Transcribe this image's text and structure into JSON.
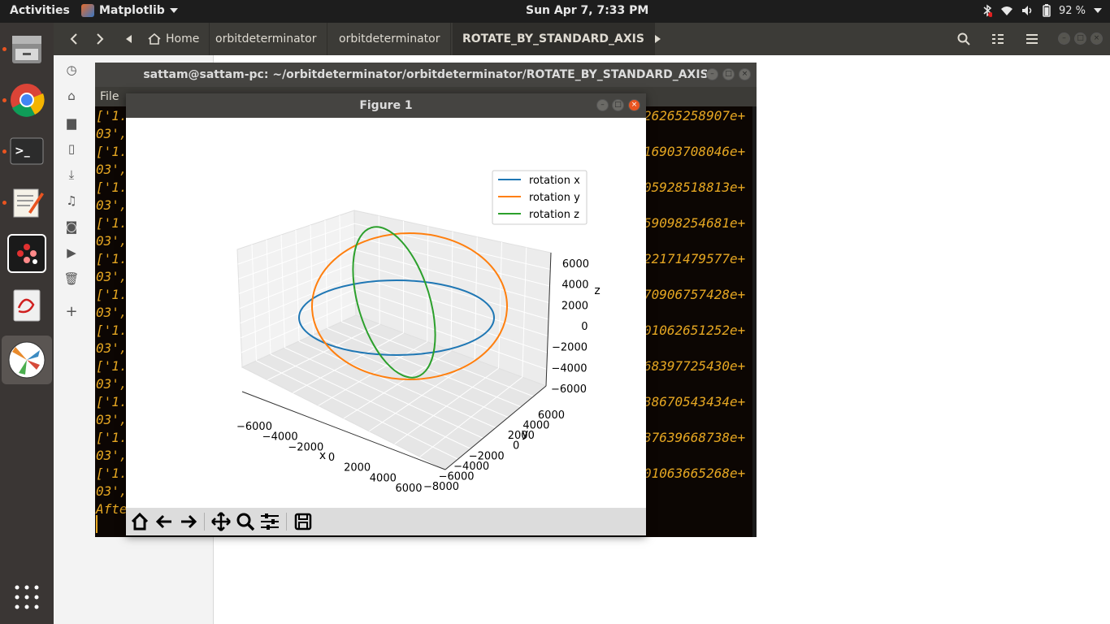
{
  "topbar": {
    "activities": "Activities",
    "app_name": "Matplotlib",
    "clock": "Sun Apr  7,  7:33 PM",
    "battery": "92 %",
    "colors": {
      "bg": "#1d1d1d"
    }
  },
  "dock": {
    "items": [
      {
        "name": "files-icon"
      },
      {
        "name": "chrome-icon"
      },
      {
        "name": "terminal-icon"
      },
      {
        "name": "text-editor-icon"
      },
      {
        "name": "app-icon-dots"
      },
      {
        "name": "document-viewer-icon"
      },
      {
        "name": "matplotlib-icon"
      }
    ]
  },
  "file_manager": {
    "breadcrumbs": [
      {
        "label": "Home"
      },
      {
        "label": "orbitdeterminator"
      },
      {
        "label": "orbitdeterminator"
      },
      {
        "label": "ROTATE_BY_STANDARD_AXIS"
      }
    ]
  },
  "terminal": {
    "title": "sattam@sattam-pc: ~/orbitdeterminator/orbitdeterminator/ROTATE_BY_STANDARD_AXIS",
    "menu_file": "File",
    "lines_left": [
      "['1.",
      "03',",
      "['1.",
      "03',",
      "['1.",
      "03',",
      "['1.",
      "03',",
      "['1.",
      "03',",
      "['1.",
      "03',",
      "['1.",
      "03',",
      "['1.",
      "03',",
      "['1.",
      "03',",
      "['1.",
      "03',",
      "['1.",
      "03',",
      "Afte"
    ],
    "lines_right": [
      "26265258907e+",
      "16903708046e+",
      "05928518813e+",
      "59098254681e+",
      "22171479577e+",
      "70906757428e+",
      "01062651252e+",
      "68397725430e+",
      "38670543434e+",
      "37639668738e+",
      "01063665268e+"
    ]
  },
  "figure": {
    "title": "Figure 1",
    "toolbar": [
      "home-icon",
      "back-icon",
      "forward-icon",
      "pan-icon",
      "zoom-icon",
      "configure-icon",
      "save-icon"
    ]
  },
  "chart_data": {
    "type": "line",
    "projection": "3d",
    "title": "",
    "xlabel": "x",
    "ylabel": "y",
    "zlabel": "z",
    "xticks": [
      "−6000",
      "−4000",
      "−2000",
      "0",
      "2000",
      "4000",
      "6000"
    ],
    "yticks": [
      "6000",
      "4000",
      "2000",
      "0",
      "−2000",
      "−4000",
      "−6000",
      "−8000"
    ],
    "zticks": [
      "6000",
      "4000",
      "2000",
      "0",
      "−2000",
      "−4000",
      "−6000"
    ],
    "legend_position": "top-right",
    "series": [
      {
        "name": "rotation x",
        "color": "#1f77b4"
      },
      {
        "name": "rotation y",
        "color": "#ff7f0e"
      },
      {
        "name": "rotation z",
        "color": "#2ca02c"
      }
    ]
  }
}
